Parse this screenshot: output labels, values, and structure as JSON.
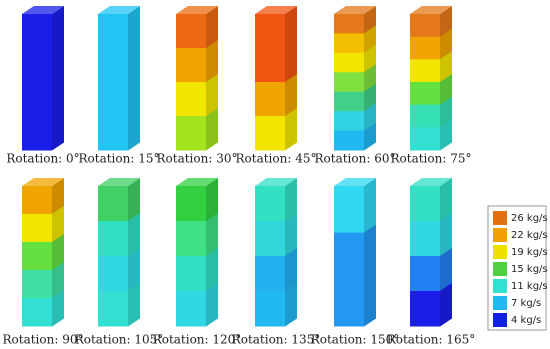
{
  "panels": [
    {
      "label": "Rotation: 0°",
      "colors": [
        "#1a1ee8",
        "#1a1ee8"
      ]
    },
    {
      "label": "Rotation: 15°",
      "colors": [
        "#22c4f4",
        "#22c4f4"
      ]
    },
    {
      "label": "Rotation: 30°",
      "colors": [
        "#ee6a12",
        "#f0a400",
        "#f2e600",
        "#a4e41e"
      ]
    },
    {
      "label": "Rotation: 45°",
      "colors": [
        "#f25412",
        "#f25412",
        "#f0a400",
        "#f2e600"
      ]
    },
    {
      "label": "Rotation: 60°",
      "colors": [
        "#e4781a",
        "#f2c000",
        "#f2e600",
        "#80e040",
        "#40d088",
        "#30d4e4",
        "#22b8f2"
      ]
    },
    {
      "label": "Rotation: 75°",
      "colors": [
        "#e4781a",
        "#f0a400",
        "#f2e600",
        "#64e040",
        "#34e0b4",
        "#32e0d4"
      ]
    },
    {
      "label": "Rotation: 90°",
      "colors": [
        "#f0a400",
        "#f2e600",
        "#64e040",
        "#40e0a4",
        "#32e0d4"
      ]
    },
    {
      "label": "Rotation: 105°",
      "colors": [
        "#40d064",
        "#32e0c4",
        "#30d8e4",
        "#32e0d4"
      ]
    },
    {
      "label": "Rotation: 120°",
      "colors": [
        "#32d040",
        "#40e084",
        "#32e0c4",
        "#30d8e4"
      ]
    },
    {
      "label": "Rotation: 135°",
      "colors": [
        "#32e0c4",
        "#30d8dc",
        "#22b0f2",
        "#22b8f2"
      ]
    },
    {
      "label": "Rotation: 150°",
      "colors": [
        "#30d8f2",
        "#2298f2",
        "#2298f2"
      ]
    },
    {
      "label": "Rotation: 165°",
      "colors": [
        "#32e0c4",
        "#30d8e4",
        "#2280f2",
        "#1a1ee8"
      ]
    }
  ],
  "legend": [
    {
      "label": "26 kg/s",
      "color": "#e07010"
    },
    {
      "label": "22 kg/s",
      "color": "#f0a000"
    },
    {
      "label": "19 kg/s",
      "color": "#f0e000"
    },
    {
      "label": "15 kg/s",
      "color": "#50d040"
    },
    {
      "label": "11 kg/s",
      "color": "#30e0d0"
    },
    {
      "label": "7 kg/s",
      "color": "#20b8f0"
    },
    {
      "label": "4 kg/s",
      "color": "#1020e0"
    }
  ]
}
